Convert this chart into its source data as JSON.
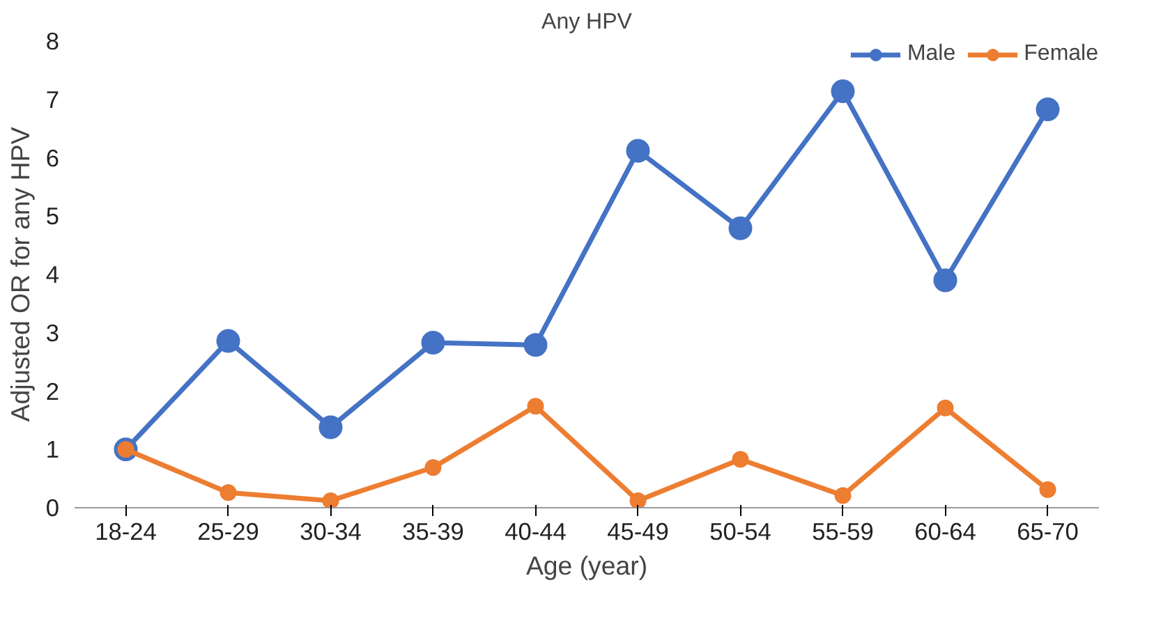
{
  "chart_data": {
    "type": "line",
    "title": "Any HPV",
    "xlabel": "Age (year)",
    "ylabel": "Adjusted OR for any HPV",
    "categories": [
      "18-24",
      "25-29",
      "30-34",
      "35-39",
      "40-44",
      "45-49",
      "50-54",
      "55-59",
      "60-64",
      "65-70"
    ],
    "series": [
      {
        "name": "Male",
        "color": "#4472c4",
        "values": [
          1.0,
          2.86,
          1.38,
          2.83,
          2.79,
          6.12,
          4.79,
          7.14,
          3.9,
          6.83
        ]
      },
      {
        "name": "Female",
        "color": "#ed7d31",
        "values": [
          1.0,
          0.26,
          0.12,
          0.69,
          1.74,
          0.12,
          0.83,
          0.21,
          1.71,
          0.31
        ]
      }
    ],
    "ylim": [
      0,
      8
    ],
    "yticks": [
      0,
      1,
      2,
      3,
      4,
      5,
      6,
      7,
      8
    ],
    "grid": false,
    "legend": "top right",
    "marker": "circle",
    "line_style": "solid"
  }
}
